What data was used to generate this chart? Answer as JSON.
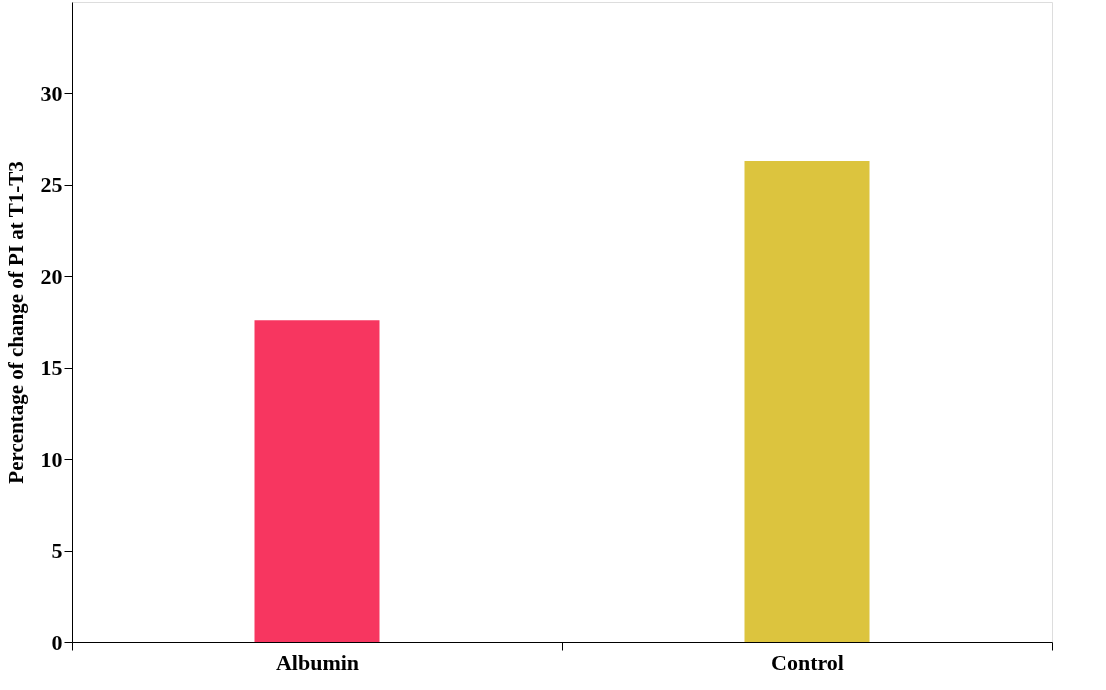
{
  "chart_data": {
    "type": "bar",
    "ylabel": "Percentage of change of PI at T1-T3",
    "categories": [
      "Albumin",
      "Control"
    ],
    "values": [
      17.6,
      26.3
    ],
    "colors": [
      "#f73660",
      "#dcc43e"
    ],
    "ylim": [
      0,
      35
    ],
    "yticks": [
      0,
      5,
      10,
      15,
      20,
      25,
      30
    ],
    "grid": false
  }
}
